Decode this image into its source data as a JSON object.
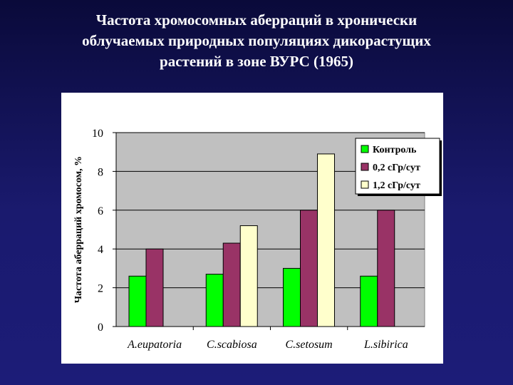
{
  "title_lines": [
    "Частота хромосомных аберраций в хронически",
    "облучаемых природных популяциях дикорастущих",
    "растений в зоне ВУРС (1965)"
  ],
  "chart_data": {
    "type": "bar",
    "categories": [
      "A.eupatoria",
      "C.scabiosa",
      "C.setosum",
      "L.sibirica"
    ],
    "series": [
      {
        "name": "Контроль",
        "color": "#00ff00",
        "values": [
          2.6,
          2.7,
          3.0,
          2.6
        ]
      },
      {
        "name": "0,2 сГр/сут",
        "color": "#993366",
        "values": [
          4.0,
          4.3,
          6.0,
          6.0
        ]
      },
      {
        "name": "1,2 сГр/сут",
        "color": "#ffffcc",
        "values": [
          null,
          5.2,
          8.9,
          null
        ]
      }
    ],
    "title": "",
    "xlabel": "",
    "ylabel": "Частота аберраций хромосом, %",
    "ylim": [
      0,
      10
    ],
    "yticks": [
      0,
      2,
      4,
      6,
      8,
      10
    ],
    "grid": "horizontal",
    "plot_background": "#c0c0c0",
    "legend_position": "top-right"
  }
}
